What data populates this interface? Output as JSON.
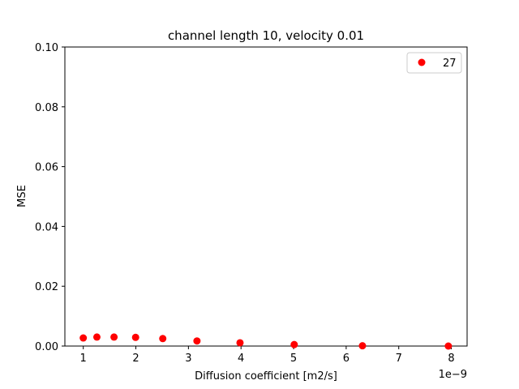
{
  "chart_data": {
    "type": "scatter",
    "title": "channel length 10, velocity 0.01",
    "xlabel": "Diffusion coefficient [m2/s]",
    "ylabel": "MSE",
    "x_offset_label": "1e−9",
    "xlim": [
      0.65,
      8.3
    ],
    "ylim": [
      0,
      0.1
    ],
    "x_ticks": [
      1,
      2,
      3,
      4,
      5,
      6,
      7,
      8
    ],
    "x_tick_labels": [
      "1",
      "2",
      "3",
      "4",
      "5",
      "6",
      "7",
      "8"
    ],
    "y_ticks": [
      0,
      0.02,
      0.04,
      0.06,
      0.08,
      0.1
    ],
    "y_tick_labels": [
      "0.00",
      "0.02",
      "0.04",
      "0.06",
      "0.08",
      "0.10"
    ],
    "grid": false,
    "legend_position": "top-right",
    "series": [
      {
        "name": "27",
        "color": "#ff0000",
        "marker": "circle",
        "x": [
          1.0,
          1.2589,
          1.5849,
          1.9953,
          2.5119,
          3.1623,
          3.9811,
          5.0119,
          6.3096,
          7.9433
        ],
        "y": [
          0.0027,
          0.003,
          0.003,
          0.0029,
          0.0025,
          0.0017,
          0.0011,
          0.0005,
          0.0001,
          0.0
        ]
      }
    ]
  }
}
